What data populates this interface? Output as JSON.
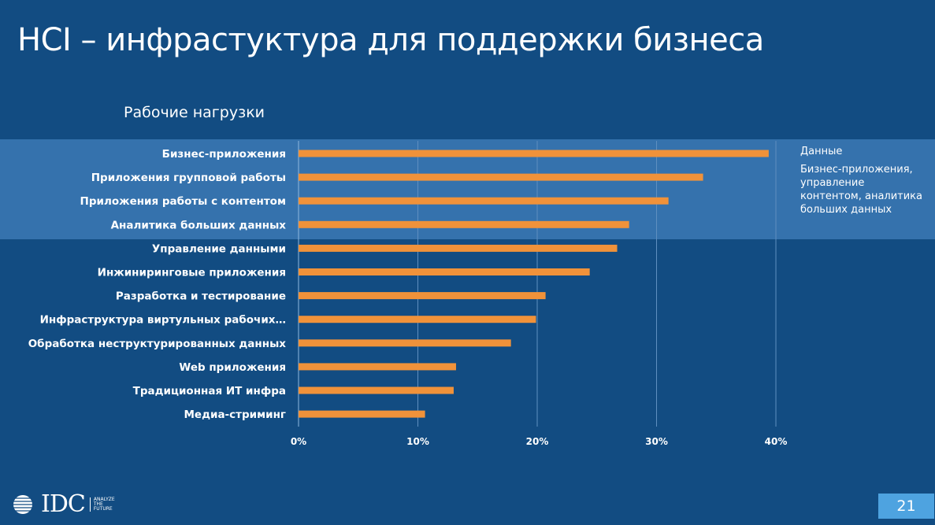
{
  "title": "HCI – инфрастуктура для поддержки бизнеса",
  "page_number": "21",
  "logo": {
    "name": "IDC",
    "tagline": "ANALYZE THE FUTURE"
  },
  "note": {
    "heading": "Данные",
    "body": "Бизнес-приложения, управление контентом, аналитика больших данных"
  },
  "colors": {
    "background": "#124c82",
    "highlight": "#3572ad",
    "bar": "#f0923a",
    "page_badge": "#4ea3e0"
  },
  "chart_data": {
    "type": "bar",
    "orientation": "horizontal",
    "title": "Рабочие нагрузки",
    "categories": [
      "Бизнес-приложения",
      "Приложения групповой работы",
      "Приложения работы с контентом",
      "Аналитика больших данных",
      "Управление данными",
      "Инжиниринговые приложения",
      "Разработка и тестирование",
      "Инфраструктура виртульных рабочих…",
      "Обработка неструктурированных данных",
      "Web приложения",
      "Традиционная ИТ инфра",
      "Медиа-стриминг"
    ],
    "values": [
      39.4,
      33.9,
      31.0,
      27.7,
      26.7,
      24.4,
      20.7,
      19.9,
      17.8,
      13.2,
      13.0,
      10.6
    ],
    "unit": "%",
    "xlim": [
      0,
      40
    ],
    "ticks": [
      "0%",
      "10%",
      "20%",
      "30%",
      "40%"
    ],
    "grid": true,
    "highlighted_categories": [
      "Бизнес-приложения",
      "Приложения групповой работы",
      "Приложения работы с контентом",
      "Аналитика больших данных"
    ]
  }
}
